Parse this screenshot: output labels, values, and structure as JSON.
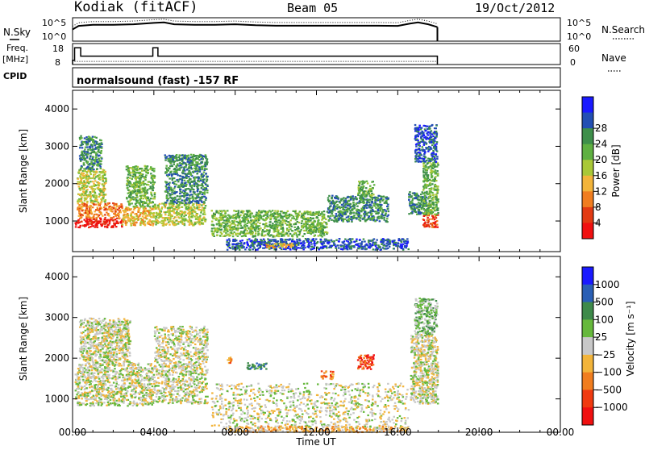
{
  "header": {
    "radar": "Kodiak (fitACF)",
    "beam": "Beam 05",
    "date": "19/Oct/2012"
  },
  "status": {
    "nsky_label": "N.Sky",
    "nsky_ticks": [
      "10^5",
      "10^0"
    ],
    "nsearch_label": "N.Search",
    "freq_label": "Freq.",
    "freq_unit": "[MHz]",
    "freq_ticks": [
      "18",
      "8"
    ],
    "nave_label": "Nave",
    "nave_ticks": [
      "60",
      "0"
    ],
    "cpid_label": "CPID",
    "cpid_text": "normalsound (fast) -157 RF"
  },
  "colors": {
    "power": [
      "#1a1aff",
      "#234fb3",
      "#3e8f4a",
      "#5fb041",
      "#a9c837",
      "#f2b43a",
      "#f07d1f",
      "#e23a12",
      "#f01010"
    ],
    "velocity": [
      "#1a1aff",
      "#2a5fb5",
      "#3e8a4a",
      "#66b83c",
      "#c8c8c8",
      "#f2b43a",
      "#f07d1f",
      "#f03a10",
      "#f01010"
    ]
  },
  "chart_data": [
    {
      "type": "line",
      "panel": "N.Sky",
      "x_unit": "hours UT",
      "x": [
        0.0,
        0.3,
        1,
        2,
        3,
        3.5,
        4,
        4.5,
        5,
        6,
        7,
        8,
        9,
        10,
        11,
        12,
        13,
        14,
        15,
        16,
        16.6,
        17.0,
        17.5,
        17.95
      ],
      "y_level": [
        0.5,
        0.65,
        0.7,
        0.7,
        0.72,
        0.75,
        0.78,
        0.8,
        0.72,
        0.7,
        0.7,
        0.72,
        0.68,
        0.66,
        0.66,
        0.66,
        0.66,
        0.66,
        0.66,
        0.65,
        0.75,
        0.8,
        0.72,
        0.6
      ],
      "ylim": [
        "10^0",
        "10^5"
      ]
    },
    {
      "type": "line",
      "panel": "Freq / Nave",
      "x_unit": "hours UT",
      "freq_mhz": [
        [
          0.0,
          10
        ],
        [
          0.1,
          16
        ],
        [
          0.4,
          12
        ],
        [
          3.9,
          12
        ],
        [
          3.95,
          16
        ],
        [
          4.2,
          12
        ],
        [
          17.95,
          11
        ]
      ],
      "ylim": [
        8,
        18
      ],
      "nave_ylim": [
        0,
        60
      ]
    },
    {
      "type": "heatmap",
      "panel": "Power",
      "xlabel": "Time UT",
      "ylabel": "Slant Range [km]",
      "xlim": [
        0,
        24
      ],
      "ylim": [
        180,
        4500
      ],
      "x_ticks": [
        "00:00",
        "04:00",
        "08:00",
        "12:00",
        "16:00",
        "20:00",
        "00:00"
      ],
      "y_ticks": [
        1000,
        2000,
        3000,
        4000
      ],
      "colorbar_label": "Power [dB]",
      "colorbar_ticks": [
        "4",
        "8",
        "12",
        "16",
        "20",
        "24",
        "28"
      ],
      "regions": [
        {
          "t0": 0.1,
          "t1": 2.4,
          "r0": 850,
          "r1": 1100,
          "level": 8
        },
        {
          "t0": 0.2,
          "t1": 2.4,
          "r0": 1100,
          "r1": 1500,
          "level": 6
        },
        {
          "t0": 0.2,
          "t1": 1.6,
          "r0": 1500,
          "r1": 2400,
          "level": 4
        },
        {
          "t0": 0.3,
          "t1": 1.4,
          "r0": 2400,
          "r1": 3300,
          "level": 2
        },
        {
          "t0": 2.4,
          "t1": 4.0,
          "r0": 900,
          "r1": 1400,
          "level": 5
        },
        {
          "t0": 2.6,
          "t1": 4.0,
          "r0": 1400,
          "r1": 2500,
          "level": 3
        },
        {
          "t0": 4.0,
          "t1": 6.5,
          "r0": 900,
          "r1": 1500,
          "level": 4
        },
        {
          "t0": 4.5,
          "t1": 6.6,
          "r0": 1500,
          "r1": 2800,
          "level": 2
        },
        {
          "t0": 6.8,
          "t1": 12.5,
          "r0": 600,
          "r1": 1300,
          "level": 3
        },
        {
          "t0": 12.5,
          "t1": 15.5,
          "r0": 1000,
          "r1": 1700,
          "level": 2
        },
        {
          "t0": 7.5,
          "t1": 16.5,
          "r0": 250,
          "r1": 550,
          "level": 1
        },
        {
          "t0": 9.5,
          "t1": 11.0,
          "r0": 300,
          "r1": 420,
          "level": 5
        },
        {
          "t0": 14.0,
          "t1": 14.8,
          "r0": 1700,
          "r1": 2100,
          "level": 3
        },
        {
          "t0": 16.5,
          "t1": 17.6,
          "r0": 1200,
          "r1": 1800,
          "level": 2
        },
        {
          "t0": 17.2,
          "t1": 17.95,
          "r0": 850,
          "r1": 1200,
          "level": 7
        },
        {
          "t0": 17.2,
          "t1": 17.95,
          "r0": 1200,
          "r1": 2600,
          "level": 3
        },
        {
          "t0": 16.8,
          "t1": 17.9,
          "r0": 2600,
          "r1": 3600,
          "level": 1
        }
      ]
    },
    {
      "type": "heatmap",
      "panel": "Velocity",
      "xlabel": "Time UT",
      "ylabel": "Slant Range [km]",
      "xlim": [
        0,
        24
      ],
      "ylim": [
        180,
        4500
      ],
      "x_ticks": [
        "00:00",
        "04:00",
        "08:00",
        "12:00",
        "16:00",
        "20:00",
        "00:00"
      ],
      "y_ticks": [
        1000,
        2000,
        3000,
        4000
      ],
      "colorbar_label": "Velocity [m s⁻¹]",
      "colorbar_ticks": [
        "1000",
        "500",
        "100",
        "25",
        "−25",
        "−100",
        "−500",
        "−1000"
      ],
      "regions": [
        {
          "t0": 0.1,
          "t1": 4.0,
          "r0": 850,
          "r1": 1900,
          "level": 4
        },
        {
          "t0": 0.3,
          "t1": 2.8,
          "r0": 1900,
          "r1": 3000,
          "level": 4
        },
        {
          "t0": 4.0,
          "t1": 6.6,
          "r0": 900,
          "r1": 2800,
          "level": 4
        },
        {
          "t0": 6.8,
          "t1": 16.5,
          "r0": 300,
          "r1": 1400,
          "level": 4
        },
        {
          "t0": 8.5,
          "t1": 9.5,
          "r0": 1750,
          "r1": 1900,
          "level": 2
        },
        {
          "t0": 7.5,
          "t1": 7.8,
          "r0": 1900,
          "r1": 2050,
          "level": 6
        },
        {
          "t0": 14.0,
          "t1": 14.8,
          "r0": 1750,
          "r1": 2100,
          "level": 7
        },
        {
          "t0": 12.2,
          "t1": 12.8,
          "r0": 1500,
          "r1": 1700,
          "level": 6
        },
        {
          "t0": 16.6,
          "t1": 17.95,
          "r0": 900,
          "r1": 2600,
          "level": 4
        },
        {
          "t0": 16.8,
          "t1": 17.9,
          "r0": 2600,
          "r1": 3500,
          "level": 3
        },
        {
          "t0": 7.5,
          "t1": 16.5,
          "r0": 200,
          "r1": 350,
          "level": 5
        }
      ]
    }
  ]
}
